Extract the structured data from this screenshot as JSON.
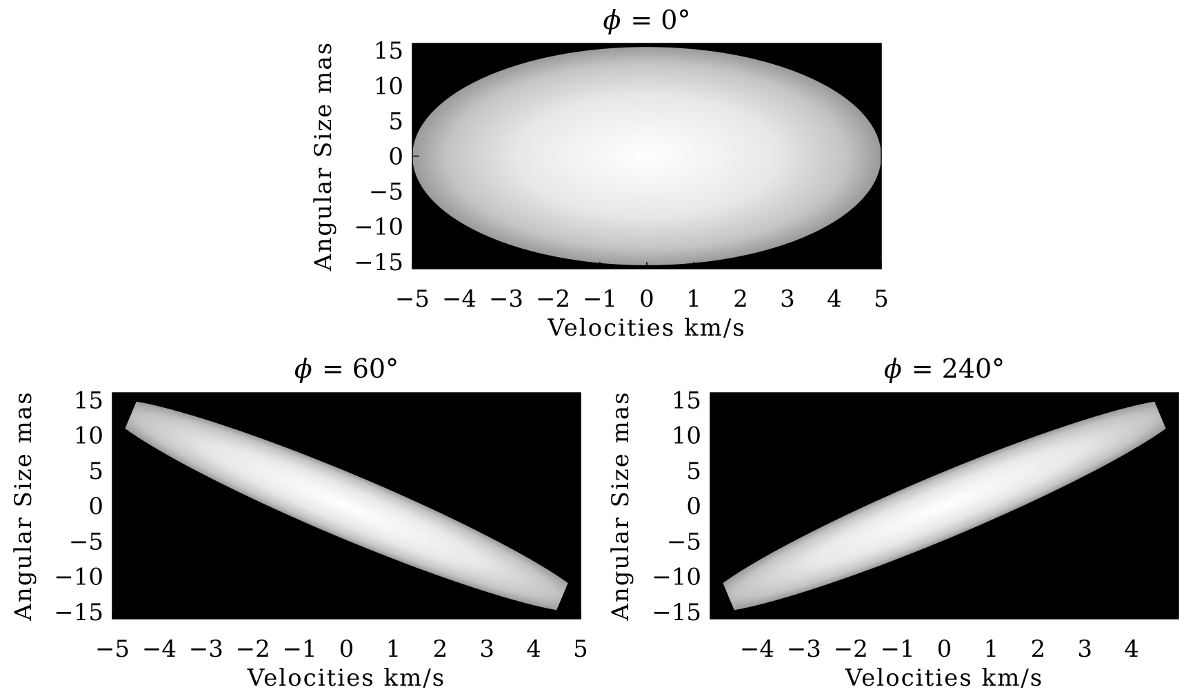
{
  "chart_data": [
    {
      "type": "heatmap",
      "title_symbol": "ϕ",
      "title_value": "= 0°",
      "xlabel": "Velocities km/s",
      "ylabel": "Angular Size mas",
      "xlim": [
        -5,
        5
      ],
      "ylim": [
        -16,
        16
      ],
      "xticks": [
        -5,
        -4,
        -3,
        -2,
        -1,
        0,
        1,
        2,
        3,
        4,
        5
      ],
      "yticks": [
        15,
        10,
        5,
        0,
        -5,
        -10,
        -15
      ],
      "ellipse": {
        "center": [
          0,
          0
        ],
        "semi_x": 5,
        "semi_y": 15.5,
        "angle_deg": 0
      },
      "colors": {
        "background": "#000000",
        "peak": "#ffffff",
        "edge": "#9a9a9a"
      }
    },
    {
      "type": "heatmap",
      "title_symbol": "ϕ",
      "title_value": "= 60°",
      "xlabel": "Velocities km/s",
      "ylabel": "Angular Size mas",
      "xlim": [
        -5,
        5
      ],
      "ylim": [
        -16,
        16
      ],
      "xticks": [
        -5,
        -4,
        -3,
        -2,
        -1,
        0,
        1,
        2,
        3,
        4,
        5
      ],
      "yticks": [
        15,
        10,
        5,
        0,
        -5,
        -10,
        -15
      ],
      "ellipse": {
        "center": [
          0,
          0
        ],
        "semi_major_x": 5.2,
        "semi_major_y": 14.5,
        "semi_minor_ratio": 0.12,
        "orientation": "top-left to bottom-right"
      },
      "colors": {
        "background": "#000000",
        "peak": "#ffffff",
        "edge": "#9a9a9a"
      }
    },
    {
      "type": "heatmap",
      "title_symbol": "ϕ",
      "title_value": "= 240°",
      "xlabel": "Velocities km/s",
      "ylabel": "Angular Size mas",
      "xlim": [
        -5,
        5
      ],
      "ylim": [
        -16,
        16
      ],
      "xticks": [
        -4,
        -3,
        -2,
        -1,
        0,
        1,
        2,
        3,
        4
      ],
      "yticks": [
        15,
        10,
        5,
        0,
        -5,
        -10,
        -15
      ],
      "ellipse": {
        "center": [
          0,
          0
        ],
        "semi_major_x": 5.2,
        "semi_major_y": 14.5,
        "semi_minor_ratio": 0.12,
        "orientation": "bottom-left to top-right"
      },
      "colors": {
        "background": "#000000",
        "peak": "#ffffff",
        "edge": "#9a9a9a"
      }
    }
  ]
}
